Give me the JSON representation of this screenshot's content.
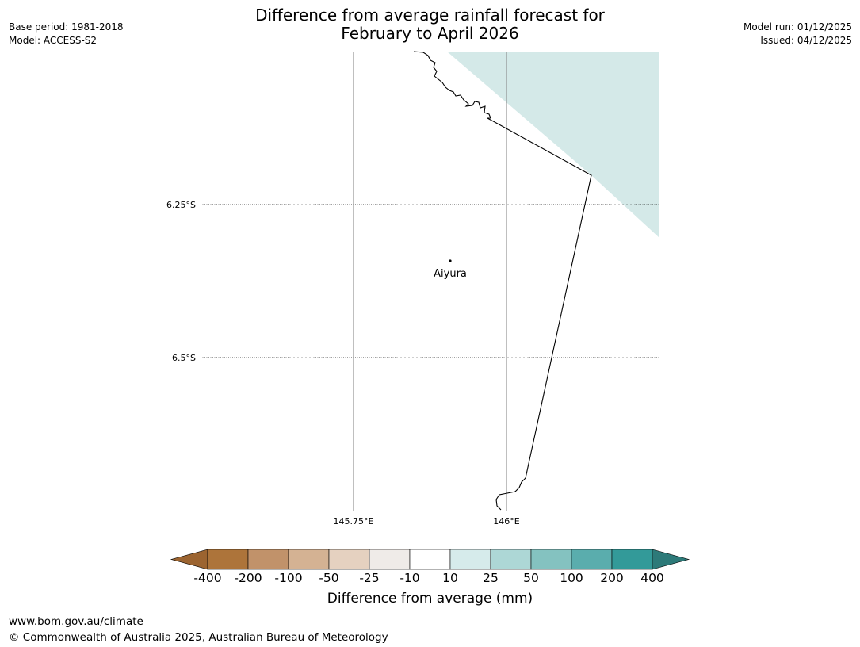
{
  "header": {
    "title_line1": "Difference from average rainfall forecast for",
    "title_line2": "February to April 2026",
    "base_period": "Base period: 1981-2018",
    "model": "Model: ACCESS-S2",
    "model_run": "Model run: 01/12/2025",
    "issued": "Issued: 04/12/2025"
  },
  "map": {
    "lat_labels": [
      "6.25°S",
      "6.5°S"
    ],
    "lon_labels": [
      "145.75°E",
      "146°E"
    ],
    "place": {
      "name": "Aiyura"
    },
    "colors": {
      "forecast_fill": "#d4e9e8",
      "coast": "#000000",
      "grid": "#7f7f7f"
    }
  },
  "colorbar": {
    "title": "Difference from average (mm)",
    "tick_labels": [
      "-400",
      "-200",
      "-100",
      "-50",
      "-25",
      "-10",
      "10",
      "25",
      "50",
      "100",
      "200",
      "400"
    ],
    "colors": [
      "#9c6430",
      "#ad743a",
      "#c1926a",
      "#d4b293",
      "#e5d1c0",
      "#efebe8",
      "#ffffff",
      "#d6ebeb",
      "#add7d6",
      "#84c2c0",
      "#5aadad",
      "#339a99",
      "#2d7a79"
    ]
  },
  "footer": {
    "url": "www.bom.gov.au/climate",
    "copyright": "© Commonwealth of Australia 2025, Australian Bureau of Meteorology"
  }
}
